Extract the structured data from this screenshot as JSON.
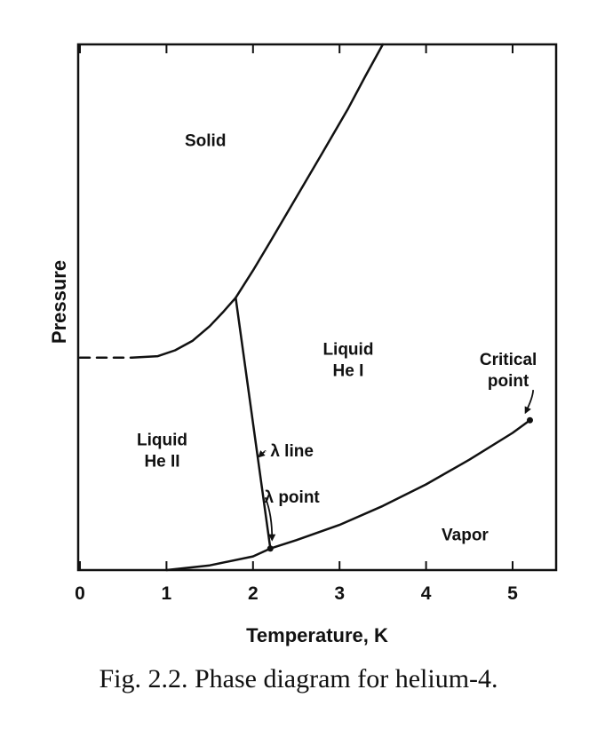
{
  "caption": "Fig. 2.2. Phase diagram for helium-4.",
  "chart_data": {
    "type": "line",
    "xlabel": "Temperature, K",
    "ylabel": "Pressure",
    "xlim": [
      0,
      5.5
    ],
    "ylim": [
      0,
      1
    ],
    "x_ticks": [
      0,
      1,
      2,
      3,
      4,
      5
    ],
    "x_tick_labels": [
      "0",
      "1",
      "2",
      "3",
      "4",
      "5"
    ],
    "grid": false,
    "color": "#111111",
    "series": [
      {
        "id": "melting-curve-dashed",
        "style": "dashed",
        "points": [
          [
            0.0,
            0.404
          ],
          [
            0.6,
            0.404
          ]
        ]
      },
      {
        "id": "melting-curve",
        "style": "solid",
        "points": [
          [
            0.6,
            0.404
          ],
          [
            0.9,
            0.407
          ],
          [
            1.1,
            0.418
          ],
          [
            1.3,
            0.436
          ],
          [
            1.5,
            0.464
          ],
          [
            1.65,
            0.49
          ],
          [
            1.8,
            0.518
          ],
          [
            2.0,
            0.57
          ],
          [
            2.2,
            0.625
          ],
          [
            2.5,
            0.709
          ],
          [
            2.8,
            0.793
          ],
          [
            3.1,
            0.878
          ],
          [
            3.3,
            0.94
          ],
          [
            3.5,
            1.0
          ]
        ]
      },
      {
        "id": "lambda-line",
        "style": "solid",
        "points": [
          [
            1.8,
            0.518
          ],
          [
            2.2,
            0.041
          ]
        ]
      },
      {
        "id": "vapor-pressure-curve",
        "style": "solid",
        "points": [
          [
            1.0,
            0.0
          ],
          [
            1.5,
            0.009
          ],
          [
            2.0,
            0.026
          ],
          [
            2.2,
            0.041
          ],
          [
            2.5,
            0.057
          ],
          [
            3.0,
            0.086
          ],
          [
            3.5,
            0.122
          ],
          [
            4.0,
            0.163
          ],
          [
            4.5,
            0.21
          ],
          [
            5.0,
            0.261
          ],
          [
            5.2,
            0.285
          ]
        ]
      }
    ],
    "markers": [
      {
        "id": "lambda-point",
        "x": 2.2,
        "y": 0.041
      },
      {
        "id": "critical-point",
        "x": 5.2,
        "y": 0.285
      }
    ],
    "region_labels": [
      {
        "id": "solid",
        "lines": [
          "Solid"
        ],
        "x": 1.45,
        "y": 0.807
      },
      {
        "id": "liquid-he-i",
        "lines": [
          "Liquid",
          "He I"
        ],
        "x": 3.1,
        "y": 0.41
      },
      {
        "id": "liquid-he-ii",
        "lines": [
          "Liquid",
          "He II"
        ],
        "x": 0.95,
        "y": 0.237
      },
      {
        "id": "vapor",
        "lines": [
          "Vapor"
        ],
        "x": 4.45,
        "y": 0.057
      }
    ],
    "annotations": [
      {
        "id": "lambda-line-label",
        "lines": [
          "λ line"
        ],
        "x": 2.45,
        "y": 0.216,
        "arrow_to": [
          2.07,
          0.216
        ]
      },
      {
        "id": "lambda-point-label",
        "lines": [
          "λ point"
        ],
        "x": 2.45,
        "y": 0.128,
        "arrow_to": [
          2.22,
          0.058
        ]
      },
      {
        "id": "critical-point-label",
        "lines": [
          "Critical",
          "point"
        ],
        "x": 4.95,
        "y": 0.39,
        "arrow_to": [
          5.15,
          0.3
        ]
      }
    ]
  }
}
